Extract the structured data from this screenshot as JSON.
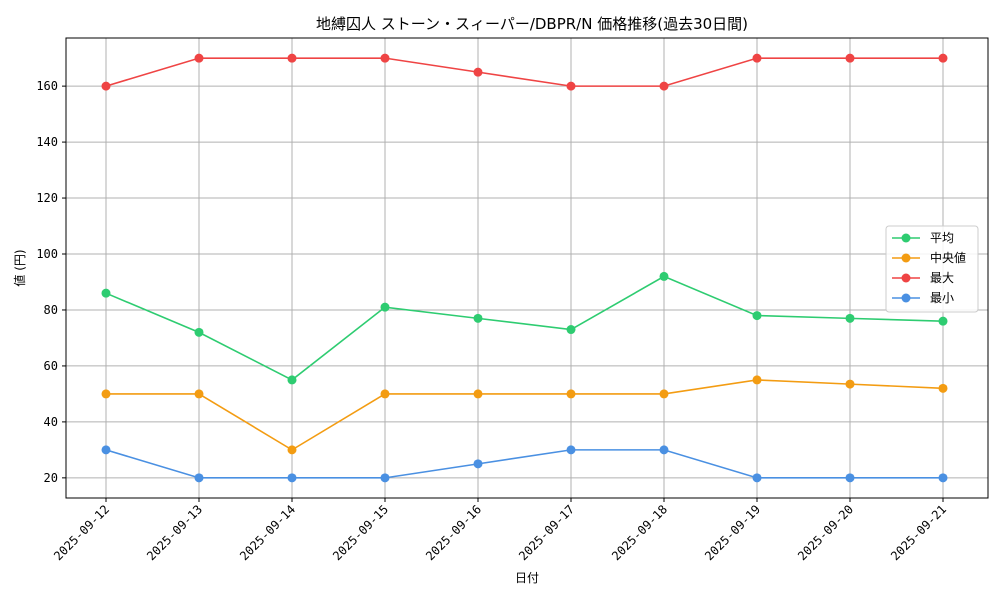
{
  "chart_data": {
    "type": "line",
    "title": "地縛囚人 ストーン・スィーパー/DBPR/N 価格推移(過去30日間)",
    "xlabel": "日付",
    "ylabel": "値 (円)",
    "categories": [
      "2025-09-12",
      "2025-09-13",
      "2025-09-14",
      "2025-09-15",
      "2025-09-16",
      "2025-09-17",
      "2025-09-18",
      "2025-09-19",
      "2025-09-20",
      "2025-09-21"
    ],
    "ylim": [
      12.8,
      177.2
    ],
    "yticks": [
      20,
      40,
      60,
      80,
      100,
      120,
      140,
      160
    ],
    "grid": true,
    "legend_position": "center-right",
    "series": [
      {
        "name": "平均",
        "color": "#2ecc71",
        "values": [
          86,
          72,
          55,
          81,
          77,
          73,
          92,
          78,
          77,
          76
        ]
      },
      {
        "name": "中央値",
        "color": "#f39c12",
        "values": [
          50,
          50,
          30,
          50,
          50,
          50,
          50,
          55,
          53.5,
          52
        ]
      },
      {
        "name": "最大",
        "color": "#ef4444",
        "values": [
          160,
          170,
          170,
          170,
          165,
          160,
          160,
          170,
          170,
          170
        ]
      },
      {
        "name": "最小",
        "color": "#4a90e2",
        "values": [
          30,
          20,
          20,
          20,
          25,
          30,
          30,
          20,
          20,
          20
        ]
      }
    ]
  }
}
